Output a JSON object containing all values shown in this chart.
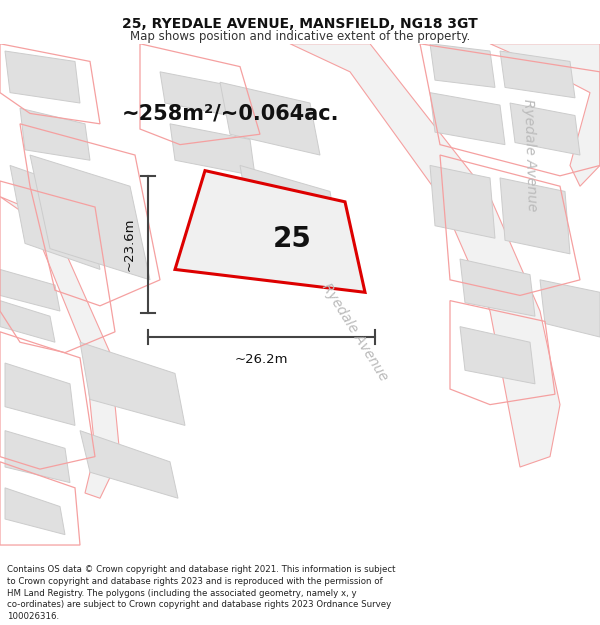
{
  "title": "25, RYEDALE AVENUE, MANSFIELD, NG18 3GT",
  "subtitle": "Map shows position and indicative extent of the property.",
  "footer": "Contains OS data © Crown copyright and database right 2021. This information is subject to Crown copyright and database rights 2023 and is reproduced with the permission of HM Land Registry. The polygons (including the associated geometry, namely x, y co-ordinates) are subject to Crown copyright and database rights 2023 Ordnance Survey 100026316.",
  "area_text": "~258m²/~0.064ac.",
  "width_text": "~26.2m",
  "height_text": "~23.6m",
  "number_text": "25",
  "bg_color": "#ffffff",
  "map_bg": "#f7f7f7",
  "red_color": "#dd0000",
  "pink_outline": "#f5a0a0",
  "bldg_fill": "#e0e0e0",
  "bldg_edge": "#cccccc",
  "road_fill": "#f0f0f0",
  "dim_color": "#444444",
  "road_label_color": "#bbbbbb",
  "title_fontsize": 10,
  "subtitle_fontsize": 8.5,
  "footer_fontsize": 6.2,
  "area_fontsize": 15,
  "number_fontsize": 20,
  "dim_fontsize": 9.5,
  "road_fontsize": 10
}
